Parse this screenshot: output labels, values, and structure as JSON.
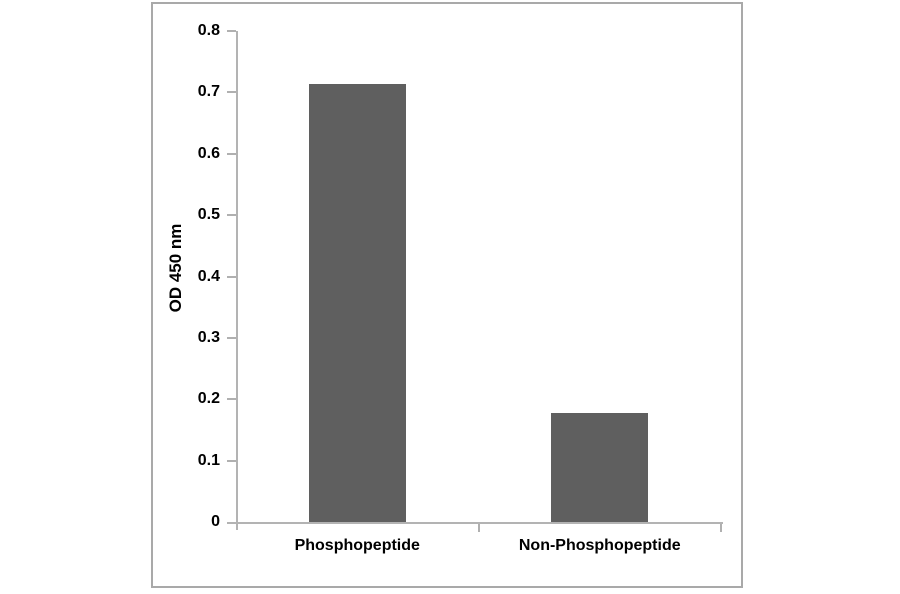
{
  "chart_data": {
    "type": "bar",
    "categories": [
      "Phosphopeptide",
      "Non-Phosphopeptide"
    ],
    "values": [
      0.713,
      0.178
    ],
    "title": "",
    "xlabel": "",
    "ylabel": "OD 450 nm",
    "ylim": [
      0,
      0.8
    ],
    "ytick_step": 0.1,
    "ytick_labels": [
      "0",
      "0.1",
      "0.2",
      "0.3",
      "0.4",
      "0.5",
      "0.6",
      "0.7",
      "0.8"
    ],
    "grid": false,
    "legend_position": "none",
    "bar_color": "#5f5f5f",
    "axis_color": "#b3b3b3",
    "tick_color": "#b0b0b0",
    "frame_color": "#a9a9a9",
    "text_color": "#000000",
    "background_color": "#ffffff"
  }
}
